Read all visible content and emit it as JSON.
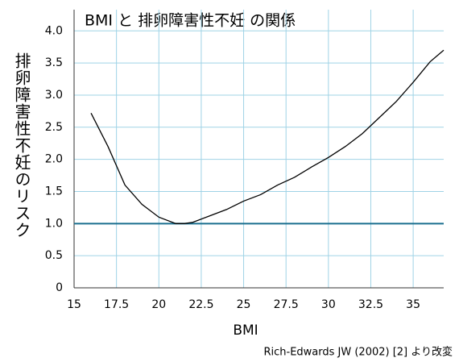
{
  "chart_data": {
    "type": "line",
    "title": "BMI と 排卵障害性不妊 の関係",
    "x_label": "BMI",
    "y_label": "排卵障害性不妊のリスク",
    "note": "Rich-Edwards JW (2002) [2] より改変",
    "x": [
      16,
      17,
      18,
      19,
      20,
      21,
      21.5,
      22,
      23,
      24,
      25,
      26,
      27,
      28,
      29,
      30,
      31,
      32,
      33,
      34,
      35,
      36,
      36.8
    ],
    "series": [
      {
        "name": "risk",
        "color": "#000000",
        "values": [
          2.72,
          2.2,
          1.6,
          1.3,
          1.1,
          1.0,
          1.0,
          1.02,
          1.12,
          1.22,
          1.35,
          1.45,
          1.6,
          1.72,
          1.88,
          2.03,
          2.2,
          2.4,
          2.65,
          2.9,
          3.2,
          3.52,
          3.7
        ]
      }
    ],
    "reference_line": {
      "value": 1,
      "color": "#1a6f8f"
    },
    "xlim": [
      15,
      36.8
    ],
    "ylim": [
      0,
      4.33
    ],
    "xticks": [
      15,
      17.5,
      20,
      22.5,
      25,
      27.5,
      30,
      32.5,
      35
    ],
    "yticks": [
      0,
      0.5,
      {
        "value": 1,
        "label": "1.0"
      },
      1.5,
      {
        "value": 2,
        "label": "2.0"
      },
      2.5,
      {
        "value": 3,
        "label": "3.0"
      },
      3.5,
      {
        "value": 4,
        "label": "4.0"
      }
    ],
    "grid": true
  }
}
